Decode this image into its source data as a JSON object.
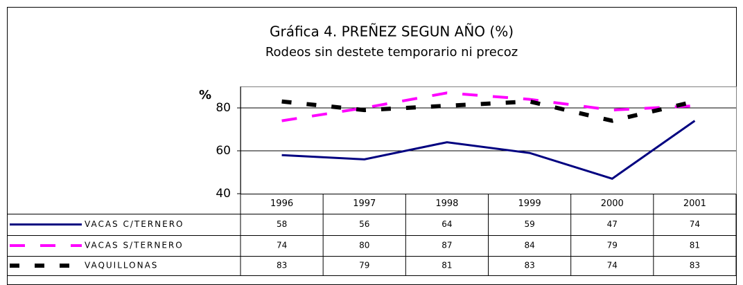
{
  "chart_data": {
    "type": "line",
    "title": "Gráfica 4.   PREÑEZ SEGUN AÑO (%)",
    "subtitle": "Rodeos sin destete temporario ni precoz",
    "ylabel": "%",
    "categories": [
      "1996",
      "1997",
      "1998",
      "1999",
      "2000",
      "2001"
    ],
    "series": [
      {
        "name": "VACAS C/TERNERO",
        "color": "#000080",
        "values": [
          58,
          56,
          64,
          59,
          47,
          74
        ]
      },
      {
        "name": "VACAS S/TERNERO",
        "color": "#ff00ff",
        "values": [
          74,
          80,
          87,
          84,
          79,
          81
        ]
      },
      {
        "name": "VAQUILLONAS",
        "color": "#000000",
        "values": [
          83,
          79,
          81,
          83,
          74,
          83
        ]
      }
    ],
    "ylim": [
      40,
      90
    ],
    "yticks": [
      40,
      60,
      80
    ],
    "grid": true
  }
}
